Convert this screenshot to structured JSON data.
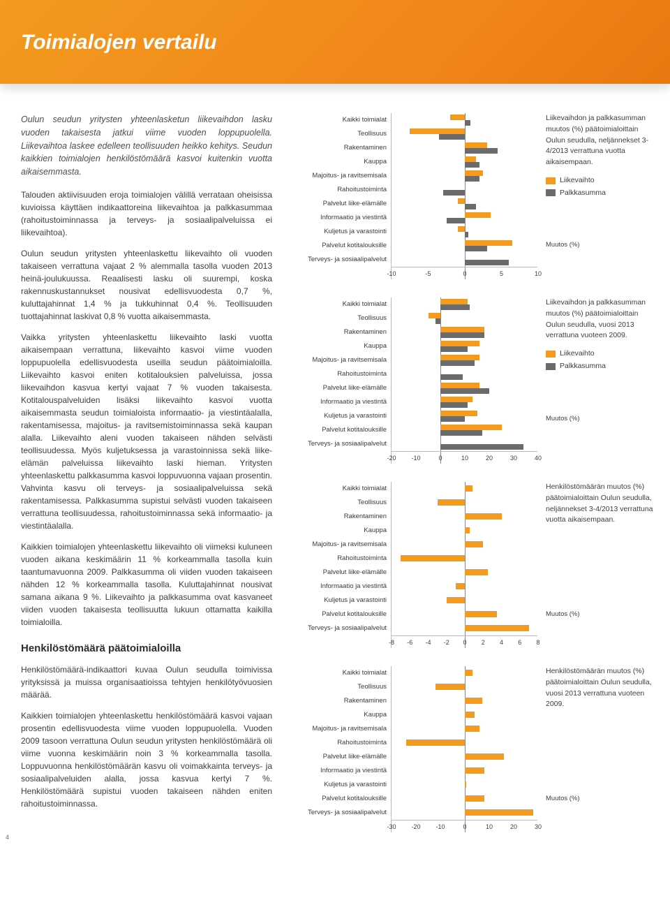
{
  "colors": {
    "orange": "#f39a1f",
    "gray": "#6b6b6b",
    "grid": "#bcbcbc",
    "text": "#3d3d3d"
  },
  "header": {
    "title": "Toimialojen vertailu"
  },
  "left": {
    "lead": "Oulun seudun yritysten yhteenlasketun liikevaihdon lasku vuoden takaisesta jatkui viime vuoden loppupuolella. Liikevaihtoa laskee edelleen teollisuuden heikko kehitys. Seudun kaikkien toimialojen henkilöstömäärä kasvoi kuitenkin vuotta aikaisemmasta.",
    "p1": "Talouden aktiivisuuden eroja toimialojen välillä verrataan oheisissa kuvioissa käyttäen indikaattoreina liikevaihtoa ja palkkasummaa (rahoitustoiminnassa ja terveys- ja sosiaalipalveluissa ei liikevaihtoa).",
    "p2": "Oulun seudun yritysten yhteenlaskettu liikevaihto oli vuoden takaiseen verrattuna vajaat 2 % alemmalla tasolla vuoden 2013 heinä-joulukuussa. Reaalisesti lasku oli suurempi, koska rakennuskustannukset nousivat edellisvuodesta 0,7 %, kuluttajahinnat 1,4 % ja tukkuhinnat 0,4 %. Teollisuuden tuottajahinnat laskivat 0,8 % vuotta aikaisemmasta.",
    "p3": "Vaikka yritysten yhteenlaskettu liikevaihto laski vuotta aikaisempaan verrattuna, liikevaihto kasvoi viime vuoden loppupuolella edellisvuodesta useilla seudun päätoimialoilla. Liikevaihto kasvoi eniten kotitalouksien palveluissa, jossa liikevaihdon kasvua kertyi vajaat 7 % vuoden takaisesta. Kotitalouspalveluiden lisäksi liikevaihto kasvoi vuotta aikaisemmasta seudun toimialoista informaatio- ja viestintäalalla, rakentamisessa, majoitus- ja ravitsemistoiminnassa sekä kaupan alalla. Liikevaihto aleni vuoden takaiseen nähden selvästi teollisuudessa. Myös kuljetuksessa ja varastoinnissa sekä liike-elämän palveluissa liikevaihto laski hieman. Yritysten yhteenlaskettu palkkasumma kasvoi loppuvuonna vajaan prosentin. Vahvinta kasvu oli terveys- ja sosiaalipalveluissa sekä rakentamisessa. Palkkasumma supistui selvästi vuoden takaiseen verrattuna teollisuudessa, rahoitustoiminnassa sekä informaatio- ja viestintäalalla.",
    "p4": "Kaikkien toimialojen yhteenlaskettu liikevaihto oli viimeksi kuluneen vuoden aikana keskimäärin 11 % korkeammalla tasolla kuin taantumavuonna 2009. Palkkasumma oli viiden vuoden takaiseen nähden 12 % korkeammalla tasolla. Kuluttajahinnat nousivat samana aikana 9 %. Liikevaihto ja palkkasumma ovat kasvaneet viiden vuoden takaisesta teollisuutta lukuun ottamatta kaikilla toimialoilla.",
    "h2": "Henkilöstömäärä päätoimialoilla",
    "p5": "Henkilöstömäärä-indikaattori kuvaa Oulun seudulla toimivissa yrityksissä ja muissa organisaatioissa tehtyjen henkilötyövuosien määrää.",
    "p6": "Kaikkien toimialojen yhteenlaskettu henkilöstömäärä kasvoi vajaan prosentin edellisvuodesta viime vuoden loppupuolella. Vuoden 2009 tasoon verrattuna Oulun seudun yritysten henkilöstömäärä oli viime vuonna keskimäärin noin 3 % korkeammalla tasolla. Loppuvuonna henkilöstömäärän kasvu oli voimakkainta terveys- ja sosiaalipalveluiden alalla, jossa kasvua kertyi 7 %. Henkilöstömäärä supistui vuoden takaiseen nähden eniten rahoitustoiminnassa."
  },
  "categories": [
    "Kaikki toimialat",
    "Teollisuus",
    "Rakentaminen",
    "Kauppa",
    "Majoitus- ja ravitsemisala",
    "Rahoitustoiminta",
    "Palvelut liike-elämälle",
    "Informaatio ja viestintä",
    "Kuljetus ja varastointi",
    "Palvelut kotitalouksille",
    "Terveys- ja sosiaalipalvelut"
  ],
  "chart1": {
    "type": "grouped-hbar",
    "title": "Liikevaihdon ja palkkasumman muutos (%) päätoimialoittain Oulun seudulla, neljännekset 3-4/2013 verrattuna vuotta aikaisempaan.",
    "series": [
      {
        "name": "Liikevaihto",
        "color": "#f39a1f"
      },
      {
        "name": "Palkkasumma",
        "color": "#6b6b6b"
      }
    ],
    "xmin": -10,
    "xmax": 10,
    "xstep": 5,
    "data": [
      [
        -2.0,
        0.8
      ],
      [
        -7.5,
        -3.5
      ],
      [
        3.0,
        4.5
      ],
      [
        1.5,
        2.0
      ],
      [
        2.5,
        2.0
      ],
      [
        null,
        -3.0
      ],
      [
        -1.0,
        1.5
      ],
      [
        3.5,
        -2.5
      ],
      [
        -1.0,
        0.5
      ],
      [
        6.5,
        3.0
      ],
      [
        null,
        6.0
      ]
    ],
    "xlabel": "Muutos (%)"
  },
  "chart2": {
    "type": "grouped-hbar",
    "title": "Liikevaihdon ja palkkasumman muutos (%) päätoimialoittain Oulun seudulla, vuosi 2013 verrattuna vuoteen 2009.",
    "series": [
      {
        "name": "Liikevaihto",
        "color": "#f39a1f"
      },
      {
        "name": "Palkkasumma",
        "color": "#6b6b6b"
      }
    ],
    "xmin": -20,
    "xmax": 40,
    "xstep": 10,
    "data": [
      [
        11,
        12
      ],
      [
        -5,
        -2
      ],
      [
        18,
        18
      ],
      [
        16,
        11
      ],
      [
        16,
        14
      ],
      [
        null,
        9
      ],
      [
        16,
        20
      ],
      [
        13,
        11
      ],
      [
        15,
        10
      ],
      [
        25,
        17
      ],
      [
        null,
        34
      ]
    ],
    "xlabel": "Muutos (%)"
  },
  "chart3": {
    "type": "hbar",
    "title": "Henkilöstömäärän muutos (%) päätoimialoittain Oulun seudulla, neljännekset 3-4/2013 verrattuna vuotta aikaisempaan.",
    "color": "#f39a1f",
    "xmin": -8,
    "xmax": 8,
    "xstep": 2,
    "data": [
      0.8,
      -3.0,
      4.0,
      0.5,
      2.0,
      -7.0,
      2.5,
      -1.0,
      -2.0,
      3.5,
      7.0
    ],
    "xlabel": "Muutos (%)"
  },
  "chart4": {
    "type": "hbar",
    "title": "Henkilöstömäärän muutos (%) päätoimialoittain Oulun seudulla, vuosi 2013 verrattuna vuoteen 2009.",
    "color": "#f39a1f",
    "xmin": -30,
    "xmax": 30,
    "xstep": 10,
    "data": [
      3.0,
      -12.0,
      7.0,
      4.0,
      6.0,
      -24.0,
      16.0,
      8.0,
      0.5,
      8.0,
      28.0
    ],
    "xlabel": "Muutos (%)"
  },
  "pageNumber": "4"
}
